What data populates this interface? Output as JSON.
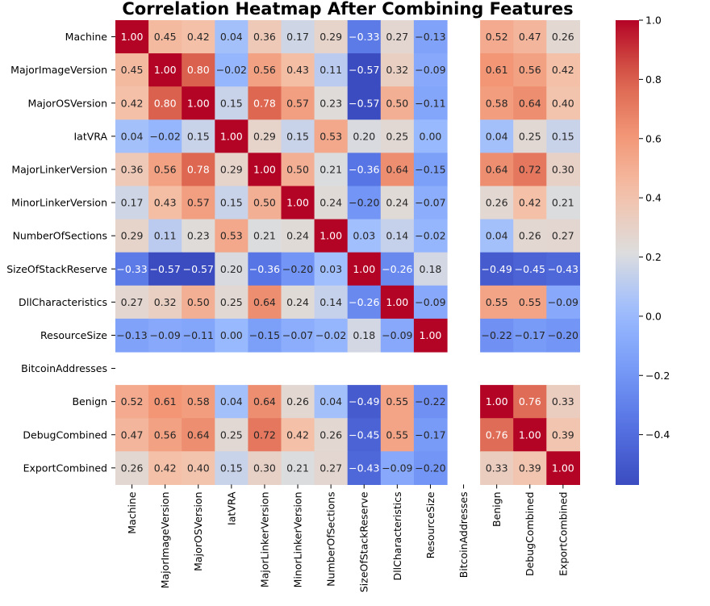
{
  "chart_data": {
    "type": "heatmap",
    "title": "Correlation Heatmap After Combining Features",
    "labels": [
      "Machine",
      "MajorImageVersion",
      "MajorOSVersion",
      "IatVRA",
      "MajorLinkerVersion",
      "MinorLinkerVersion",
      "NumberOfSections",
      "SizeOfStackReserve",
      "DllCharacteristics",
      "ResourceSize",
      "BitcoinAddresses",
      "Benign",
      "DebugCombined",
      "ExportCombined"
    ],
    "matrix": [
      [
        1.0,
        0.45,
        0.42,
        0.04,
        0.36,
        0.17,
        0.29,
        -0.33,
        0.27,
        -0.13,
        null,
        0.52,
        0.47,
        0.26
      ],
      [
        0.45,
        1.0,
        0.8,
        -0.02,
        0.56,
        0.43,
        0.11,
        -0.57,
        0.32,
        -0.09,
        null,
        0.61,
        0.56,
        0.42
      ],
      [
        0.42,
        0.8,
        1.0,
        0.15,
        0.78,
        0.57,
        0.23,
        -0.57,
        0.5,
        -0.11,
        null,
        0.58,
        0.64,
        0.4
      ],
      [
        0.04,
        -0.02,
        0.15,
        1.0,
        0.29,
        0.15,
        0.53,
        0.2,
        0.25,
        0.0,
        null,
        0.04,
        0.25,
        0.15
      ],
      [
        0.36,
        0.56,
        0.78,
        0.29,
        1.0,
        0.5,
        0.21,
        -0.36,
        0.64,
        -0.15,
        null,
        0.64,
        0.72,
        0.3
      ],
      [
        0.17,
        0.43,
        0.57,
        0.15,
        0.5,
        1.0,
        0.24,
        -0.2,
        0.24,
        -0.07,
        null,
        0.26,
        0.42,
        0.21
      ],
      [
        0.29,
        0.11,
        0.23,
        0.53,
        0.21,
        0.24,
        1.0,
        0.03,
        0.14,
        -0.02,
        null,
        0.04,
        0.26,
        0.27
      ],
      [
        -0.33,
        -0.57,
        -0.57,
        0.2,
        -0.36,
        -0.2,
        0.03,
        1.0,
        -0.26,
        0.18,
        null,
        -0.49,
        -0.45,
        -0.43
      ],
      [
        0.27,
        0.32,
        0.5,
        0.25,
        0.64,
        0.24,
        0.14,
        -0.26,
        1.0,
        -0.09,
        null,
        0.55,
        0.55,
        -0.09
      ],
      [
        -0.13,
        -0.09,
        -0.11,
        0.0,
        -0.15,
        -0.07,
        -0.02,
        0.18,
        -0.09,
        1.0,
        null,
        -0.22,
        -0.17,
        -0.2
      ],
      [
        null,
        null,
        null,
        null,
        null,
        null,
        null,
        null,
        null,
        null,
        null,
        null,
        null,
        null
      ],
      [
        0.52,
        0.61,
        0.58,
        0.04,
        0.64,
        0.26,
        0.04,
        -0.49,
        0.55,
        -0.22,
        null,
        1.0,
        0.76,
        0.33
      ],
      [
        0.47,
        0.56,
        0.64,
        0.25,
        0.72,
        0.42,
        0.26,
        -0.45,
        0.55,
        -0.17,
        null,
        0.76,
        1.0,
        0.39
      ],
      [
        0.26,
        0.42,
        0.4,
        0.15,
        0.3,
        0.21,
        0.27,
        -0.43,
        -0.09,
        -0.2,
        null,
        0.33,
        0.39,
        1.0
      ]
    ],
    "colormap": "coolwarm",
    "vmin": -0.57,
    "vmax": 1.0,
    "colorbar_ticks": [
      1.0,
      0.8,
      0.6,
      0.4,
      0.2,
      0.0,
      -0.2,
      -0.4
    ],
    "colorbar_tick_labels": [
      "1.0",
      "0.8",
      "0.6",
      "0.4",
      "0.2",
      "0.0",
      "−0.2",
      "−0.4"
    ],
    "annotation_format": "2 decimals"
  }
}
